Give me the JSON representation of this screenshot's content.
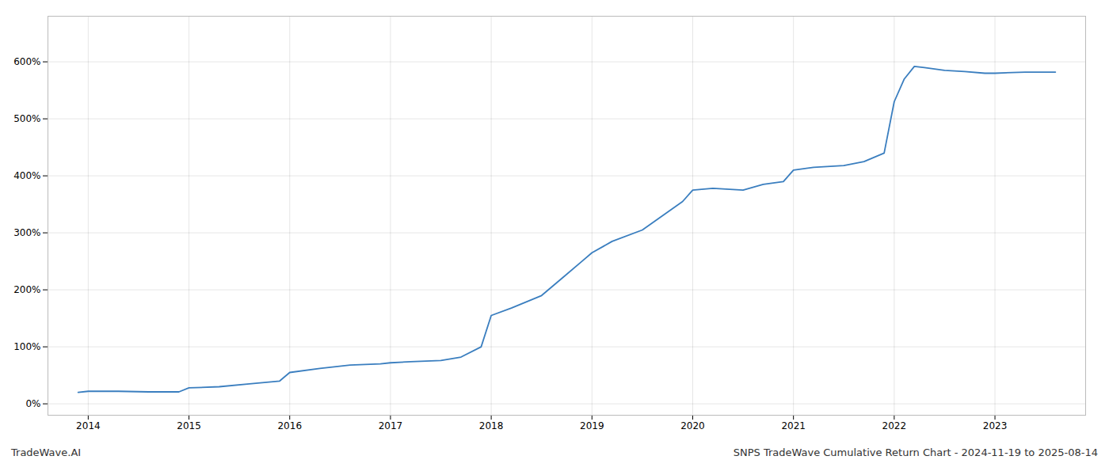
{
  "chart_data": {
    "type": "line",
    "title": "SNPS TradeWave Cumulative Return Chart - 2024-11-19 to 2025-08-14",
    "annotations": [
      "TradeWave.AI"
    ],
    "x": [
      2013.9,
      2014.0,
      2014.3,
      2014.6,
      2014.9,
      2015.0,
      2015.3,
      2015.6,
      2015.9,
      2016.0,
      2016.3,
      2016.6,
      2016.9,
      2017.0,
      2017.2,
      2017.5,
      2017.7,
      2017.9,
      2018.0,
      2018.2,
      2018.5,
      2018.7,
      2018.9,
      2019.0,
      2019.2,
      2019.5,
      2019.7,
      2019.9,
      2020.0,
      2020.2,
      2020.5,
      2020.7,
      2020.9,
      2021.0,
      2021.2,
      2021.5,
      2021.7,
      2021.9,
      2022.0,
      2022.1,
      2022.2,
      2022.3,
      2022.5,
      2022.7,
      2022.9,
      2023.0,
      2023.3,
      2023.6
    ],
    "values": [
      20,
      22,
      22,
      21,
      21,
      28,
      30,
      35,
      40,
      55,
      62,
      68,
      70,
      72,
      74,
      76,
      82,
      100,
      155,
      168,
      190,
      220,
      250,
      265,
      285,
      305,
      330,
      355,
      375,
      378,
      375,
      385,
      390,
      410,
      415,
      418,
      425,
      440,
      530,
      570,
      592,
      590,
      585,
      583,
      580,
      580,
      582,
      582
    ],
    "color": "#3a7ebf",
    "xlim": [
      2013.6,
      2023.9
    ],
    "ylim": [
      -20,
      680
    ],
    "xticks": [
      2014,
      2015,
      2016,
      2017,
      2018,
      2019,
      2020,
      2021,
      2022,
      2023
    ],
    "yticks": [
      {
        "value": 0,
        "label": "0%"
      },
      {
        "value": 100,
        "label": "100%"
      },
      {
        "value": 200,
        "label": "200%"
      },
      {
        "value": 300,
        "label": "300%"
      },
      {
        "value": 400,
        "label": "400%"
      },
      {
        "value": 500,
        "label": "500%"
      },
      {
        "value": 600,
        "label": "600%"
      }
    ],
    "grid": true
  }
}
